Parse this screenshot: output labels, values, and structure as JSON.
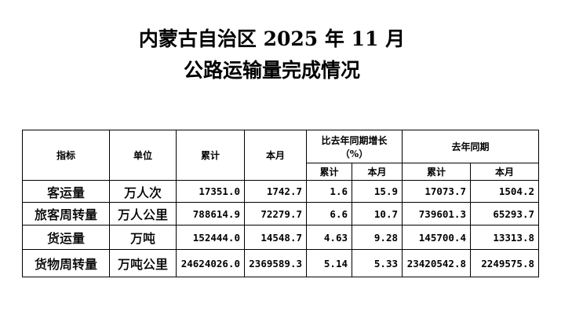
{
  "title_line1": "内蒙古自治区 2025 年 11 月",
  "title_line2": "公路运输量完成情况",
  "headers": {
    "indicator": "指标",
    "unit": "单位",
    "cumulative": "累计",
    "month": "本月",
    "growth": "比去年同期增长",
    "growth_unit": "（%）",
    "growth_cumulative": "累计",
    "growth_month": "本月",
    "last_year": "去年同期",
    "ly_cumulative": "累计",
    "ly_month": "本月"
  },
  "rows": [
    {
      "indicator": "客运量",
      "unit": "万人次",
      "cumulative": "17351.0",
      "month": "1742.7",
      "growth_cumulative": "1.6",
      "growth_month": "15.9",
      "ly_cumulative": "17073.7",
      "ly_month": "1504.2"
    },
    {
      "indicator": "旅客周转量",
      "unit": "万人公里",
      "cumulative": "788614.9",
      "month": "72279.7",
      "growth_cumulative": "6.6",
      "growth_month": "10.7",
      "ly_cumulative": "739601.3",
      "ly_month": "65293.7"
    },
    {
      "indicator": "货运量",
      "unit": "万吨",
      "cumulative": "152444.0",
      "month": "14548.7",
      "growth_cumulative": "4.63",
      "growth_month": "9.28",
      "ly_cumulative": "145700.4",
      "ly_month": "13313.8"
    },
    {
      "indicator": "货物周转量",
      "unit": "万吨公里",
      "cumulative": "24624026.0",
      "month": "2369589.3",
      "growth_cumulative": "5.14",
      "growth_month": "5.33",
      "ly_cumulative": "23420542.8",
      "ly_month": "2249575.8"
    }
  ]
}
